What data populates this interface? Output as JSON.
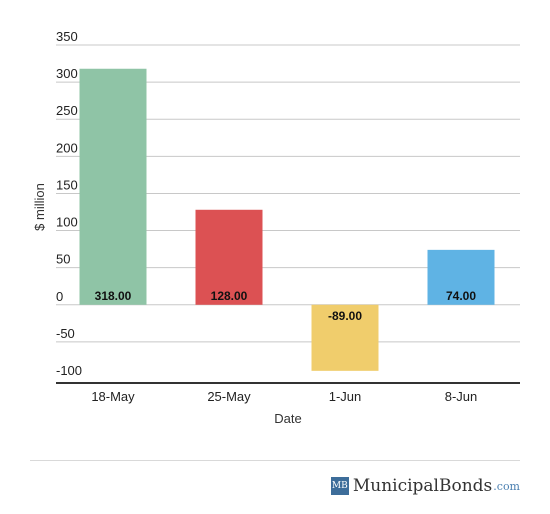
{
  "chart_data": {
    "type": "bar",
    "categories": [
      "18-May",
      "25-May",
      "1-Jun",
      "8-Jun"
    ],
    "values": [
      318.0,
      128.0,
      -89.0,
      74.0
    ],
    "value_labels": [
      "318.00",
      "128.00",
      "-89.00",
      "74.00"
    ],
    "colors": [
      "#8fc4a6",
      "#dc5153",
      "#f0cd6c",
      "#5fb3e4"
    ],
    "title": "",
    "xlabel": "Date",
    "ylabel": "$ million",
    "ylim": [
      -100,
      350
    ],
    "yticks": [
      350,
      300,
      250,
      200,
      150,
      100,
      50,
      0,
      -50,
      -100
    ],
    "grid": true,
    "legend": "none"
  },
  "footer": {
    "logo_text": "MB",
    "brand_name": "MunicipalBonds",
    "brand_tld": ".com"
  }
}
